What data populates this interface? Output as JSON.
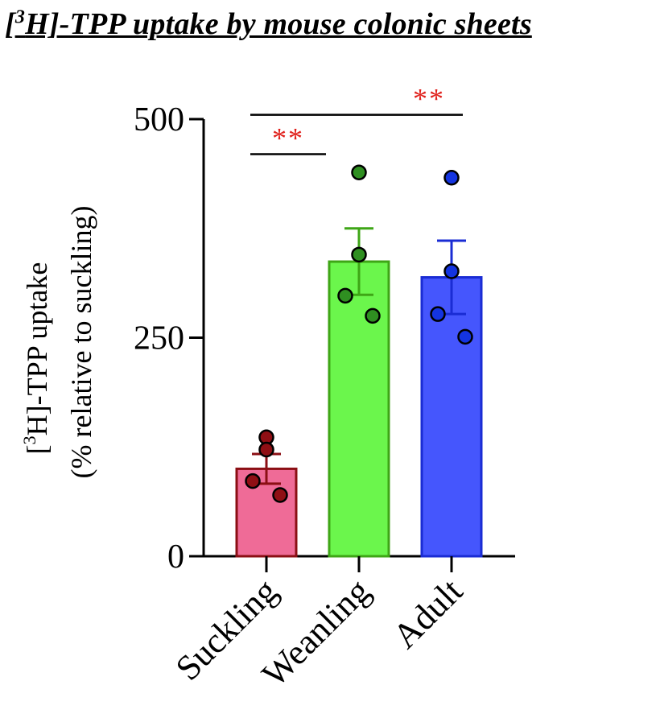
{
  "chart_data": {
    "type": "bar",
    "title_bracket_open": "[",
    "title_superscript": "3",
    "title_rest": "H]-TPP uptake by mouse colonic sheets",
    "ylabel_bracket": "[",
    "ylabel_superscript": "3",
    "ylabel_line1_rest": "H]-TPP uptake",
    "ylabel_line2": "(% relative to suckling)",
    "categories": [
      "Suckling",
      "Weanling",
      "Adult"
    ],
    "values": [
      100,
      337,
      319
    ],
    "sem": [
      17,
      38,
      42
    ],
    "points": [
      [
        136,
        122,
        86,
        70
      ],
      [
        439,
        345,
        298,
        275
      ],
      [
        433,
        326,
        277,
        251
      ]
    ],
    "bar_fill": [
      "#ef6b97",
      "#6bf64c",
      "#4556fd"
    ],
    "bar_edge": [
      "#8b0f14",
      "#3ea616",
      "#1a2cd4"
    ],
    "point_fill": [
      "#8f0f14",
      "#2f8f21",
      "#1434e0"
    ],
    "ylim": [
      0,
      500
    ],
    "yticks": [
      0,
      250,
      500
    ],
    "significance": [
      {
        "from": 0,
        "to": 1,
        "label": "**",
        "y": 460
      },
      {
        "from": 0,
        "to": 2,
        "label": "**",
        "y": 505
      }
    ],
    "significance_color": "#e0201b",
    "grid": false,
    "legend": "none"
  }
}
